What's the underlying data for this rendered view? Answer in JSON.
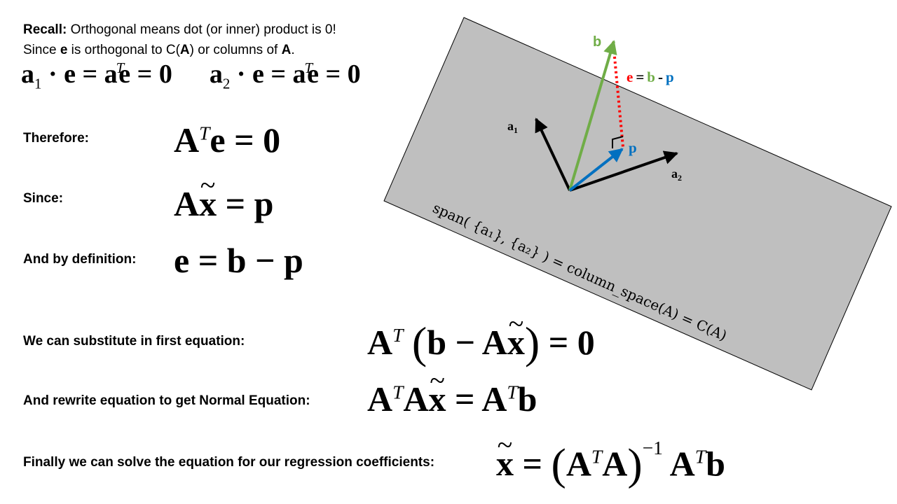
{
  "recall": {
    "bold": "Recall:",
    "rest": " Orthogonal means dot (or inner) product is 0!"
  },
  "since_line": {
    "pre": "Since ",
    "e": "e",
    "mid": " is orthogonal to C(",
    "A1": "A",
    "mid2": ") or columns of ",
    "A2": "A",
    "end": "."
  },
  "labels": {
    "therefore": "Therefore:",
    "since": "Since:",
    "by_definition": "And by definition:",
    "substitute": "We can substitute in first equation:",
    "rewrite": "And rewrite equation to get Normal Equation:",
    "finally": "Finally we can solve the equation for our regression coefficients:"
  },
  "math": {
    "a": "a",
    "e": "e",
    "A": "A",
    "b": "b",
    "p": "p",
    "x": "x",
    "T": "T",
    "one": "1",
    "two": "2",
    "zero": "0",
    "neg_one": "−1",
    "dot": "·",
    "eq": "=",
    "minus": "−",
    "lparen": "(",
    "rparen": ")"
  },
  "diagram": {
    "vec_b": "b",
    "vec_a": "a",
    "vec_p": "p",
    "sub1": "1",
    "sub2": "2",
    "err_e": "e",
    "err_eq": "=",
    "err_b": "b",
    "err_minus": "-",
    "err_p": "p",
    "span_label": "span( {a₁}, {a₂} ) = column_space(A) = C(A)",
    "colors": {
      "plane": "#bfbfbf",
      "b": "#70ad47",
      "p": "#0070c0",
      "e": "#ff0000",
      "a": "#000000"
    }
  }
}
